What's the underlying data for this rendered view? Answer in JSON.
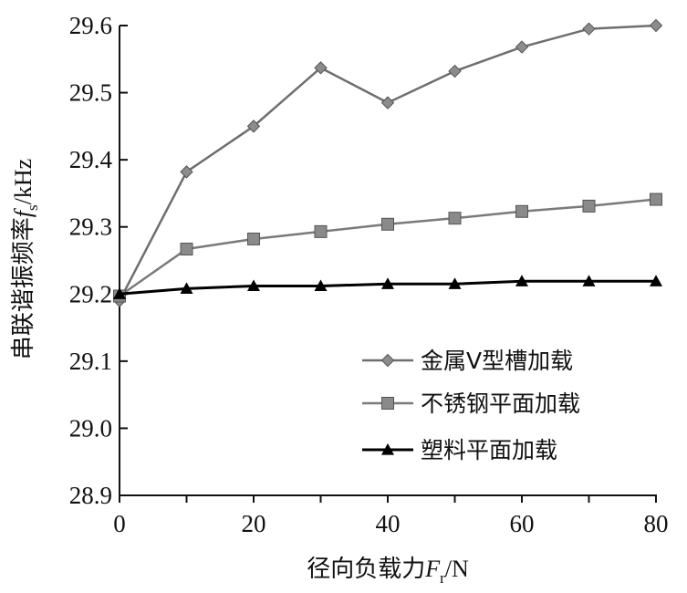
{
  "chart_data": {
    "type": "line",
    "title": "",
    "xlabel": {
      "prefix": "径向负载力",
      "symbol": "F",
      "subscript": "r",
      "suffix": "/N"
    },
    "ylabel": {
      "prefix": "串联谐振频率",
      "symbol": "f",
      "subscript": "s",
      "suffix": "/kHz"
    },
    "xlim": [
      0,
      80
    ],
    "ylim": [
      28.9,
      29.6
    ],
    "x_ticks": [
      "0",
      "20",
      "40",
      "60",
      "80"
    ],
    "y_ticks": [
      "28.9",
      "29.0",
      "29.1",
      "29.2",
      "29.3",
      "29.4",
      "29.5",
      "29.6"
    ],
    "x": [
      0,
      10,
      20,
      30,
      40,
      50,
      60,
      70,
      80
    ],
    "grid": false,
    "legend_position": "bottom-right",
    "series": [
      {
        "name": "金属V型槽加载",
        "marker": "diamond",
        "color": "#777777",
        "values": [
          29.19,
          29.382,
          29.45,
          29.537,
          29.485,
          29.532,
          29.568,
          29.595,
          29.6
        ]
      },
      {
        "name": "不锈钢平面加载",
        "marker": "square",
        "color": "#808080",
        "values": [
          29.197,
          29.267,
          29.282,
          29.293,
          29.304,
          29.313,
          29.323,
          29.331,
          29.341
        ]
      },
      {
        "name": "塑料平面加载",
        "marker": "triangle",
        "color": "#000000",
        "values": [
          29.2,
          29.208,
          29.212,
          29.212,
          29.215,
          29.215,
          29.219,
          29.219,
          29.219
        ]
      }
    ]
  }
}
